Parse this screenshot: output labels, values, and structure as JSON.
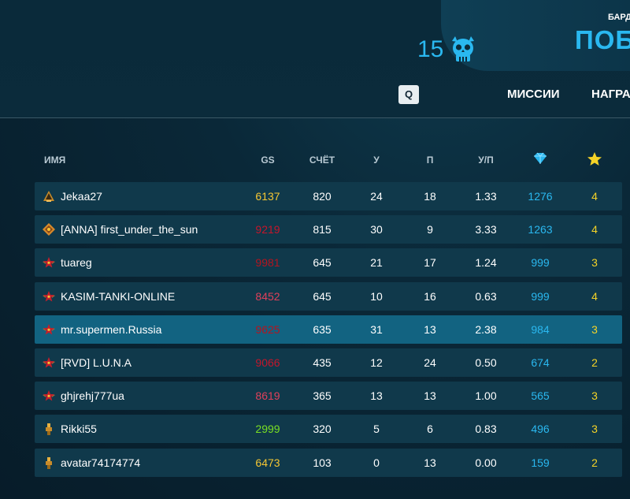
{
  "header": {
    "crystal_count": "15",
    "battle_label_small": "БАРД",
    "battle_label_big": "ПОБ",
    "hotkey": "Q",
    "nav_missions": "МИССИИ",
    "nav_rewards": "НАГРА"
  },
  "table": {
    "columns": {
      "name": "ИМЯ",
      "gs": "GS",
      "score": "СЧЁТ",
      "kills": "У",
      "deaths": "П",
      "kd": "У/П",
      "crystals_icon": "diamond-icon",
      "stars_icon": "star-icon"
    },
    "rows": [
      {
        "rank_icon": "rank-icon",
        "name": "Jekaa27",
        "gs": "6137",
        "gs_color": "#f5c633",
        "score": "820",
        "kills": "24",
        "deaths": "18",
        "kd": "1.33",
        "crystals": "1276",
        "stars": "4"
      },
      {
        "rank_icon": "rank-icon",
        "name": "[ANNA] first_under_the_sun",
        "gs": "9219",
        "gs_color": "#c4162b",
        "score": "815",
        "kills": "30",
        "deaths": "9",
        "kd": "3.33",
        "crystals": "1263",
        "stars": "4"
      },
      {
        "rank_icon": "rank-icon",
        "name": "tuareg",
        "gs": "9981",
        "gs_color": "#b5141f",
        "score": "645",
        "kills": "21",
        "deaths": "17",
        "kd": "1.24",
        "crystals": "999",
        "stars": "3"
      },
      {
        "rank_icon": "rank-icon",
        "name": "KASIM-TANKI-ONLINE",
        "gs": "8452",
        "gs_color": "#e0405a",
        "score": "645",
        "kills": "10",
        "deaths": "16",
        "kd": "0.63",
        "crystals": "999",
        "stars": "4"
      },
      {
        "rank_icon": "rank-icon",
        "name": "mr.supermen.Russia",
        "gs": "9625",
        "gs_color": "#b5141f",
        "score": "635",
        "kills": "31",
        "deaths": "13",
        "kd": "2.38",
        "crystals": "984",
        "stars": "3"
      },
      {
        "rank_icon": "rank-icon",
        "name": "[RVD] L.U.N.A",
        "gs": "9066",
        "gs_color": "#c4162b",
        "score": "435",
        "kills": "12",
        "deaths": "24",
        "kd": "0.50",
        "crystals": "674",
        "stars": "2"
      },
      {
        "rank_icon": "rank-icon",
        "name": "ghjrehj777ua",
        "gs": "8619",
        "gs_color": "#e0405a",
        "score": "365",
        "kills": "13",
        "deaths": "13",
        "kd": "1.00",
        "crystals": "565",
        "stars": "3"
      },
      {
        "rank_icon": "rank-icon",
        "name": "Rikki55",
        "gs": "2999",
        "gs_color": "#7adf23",
        "score": "320",
        "kills": "5",
        "deaths": "6",
        "kd": "0.83",
        "crystals": "496",
        "stars": "3"
      },
      {
        "rank_icon": "rank-icon",
        "name": "avatar74174774",
        "gs": "6473",
        "gs_color": "#f5c633",
        "score": "103",
        "kills": "0",
        "deaths": "13",
        "kd": "0.00",
        "crystals": "159",
        "stars": "2"
      }
    ],
    "highlighted_row": 4
  }
}
